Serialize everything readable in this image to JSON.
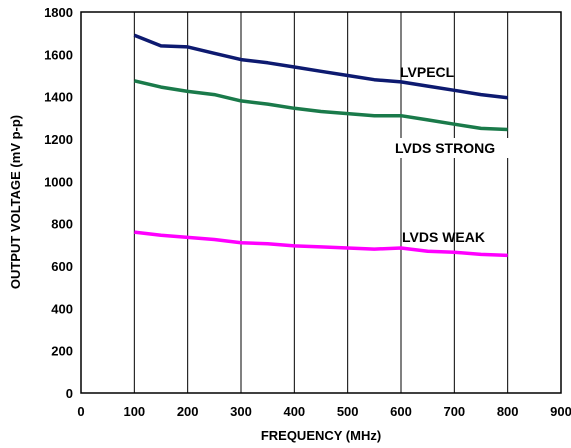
{
  "chart_data": {
    "type": "line",
    "xlabel": "FREQUENCY (MHz)",
    "ylabel": "OUTPUT VOLTAGE (mV p-p)",
    "xlim": [
      0,
      900
    ],
    "ylim": [
      0,
      1800
    ],
    "xticks": [
      "0",
      "100",
      "200",
      "300",
      "400",
      "500",
      "600",
      "700",
      "800",
      "900"
    ],
    "yticks": [
      "0",
      "200",
      "400",
      "600",
      "800",
      "1000",
      "1200",
      "1400",
      "1600",
      "1800"
    ],
    "grid": "vertical",
    "legend": "inline labels",
    "series": [
      {
        "name": "LVPECL",
        "color": "#0d1a70",
        "x": [
          100,
          150,
          200,
          250,
          300,
          350,
          400,
          450,
          500,
          550,
          600,
          650,
          700,
          750,
          800
        ],
        "y": [
          1690,
          1640,
          1635,
          1605,
          1575,
          1560,
          1540,
          1520,
          1500,
          1480,
          1470,
          1450,
          1430,
          1410,
          1395
        ]
      },
      {
        "name": "LVDS STRONG",
        "color": "#1a7a4a",
        "x": [
          100,
          150,
          200,
          250,
          300,
          350,
          400,
          450,
          500,
          550,
          600,
          650,
          700,
          750,
          800
        ],
        "y": [
          1475,
          1445,
          1425,
          1410,
          1380,
          1365,
          1345,
          1330,
          1320,
          1310,
          1310,
          1290,
          1270,
          1250,
          1245
        ]
      },
      {
        "name": "LVDS WEAK",
        "color": "#ff00ff",
        "x": [
          100,
          150,
          200,
          250,
          300,
          350,
          400,
          450,
          500,
          550,
          600,
          650,
          700,
          750,
          800
        ],
        "y": [
          760,
          745,
          735,
          725,
          710,
          705,
          695,
          690,
          685,
          680,
          685,
          670,
          665,
          655,
          650
        ]
      }
    ]
  }
}
